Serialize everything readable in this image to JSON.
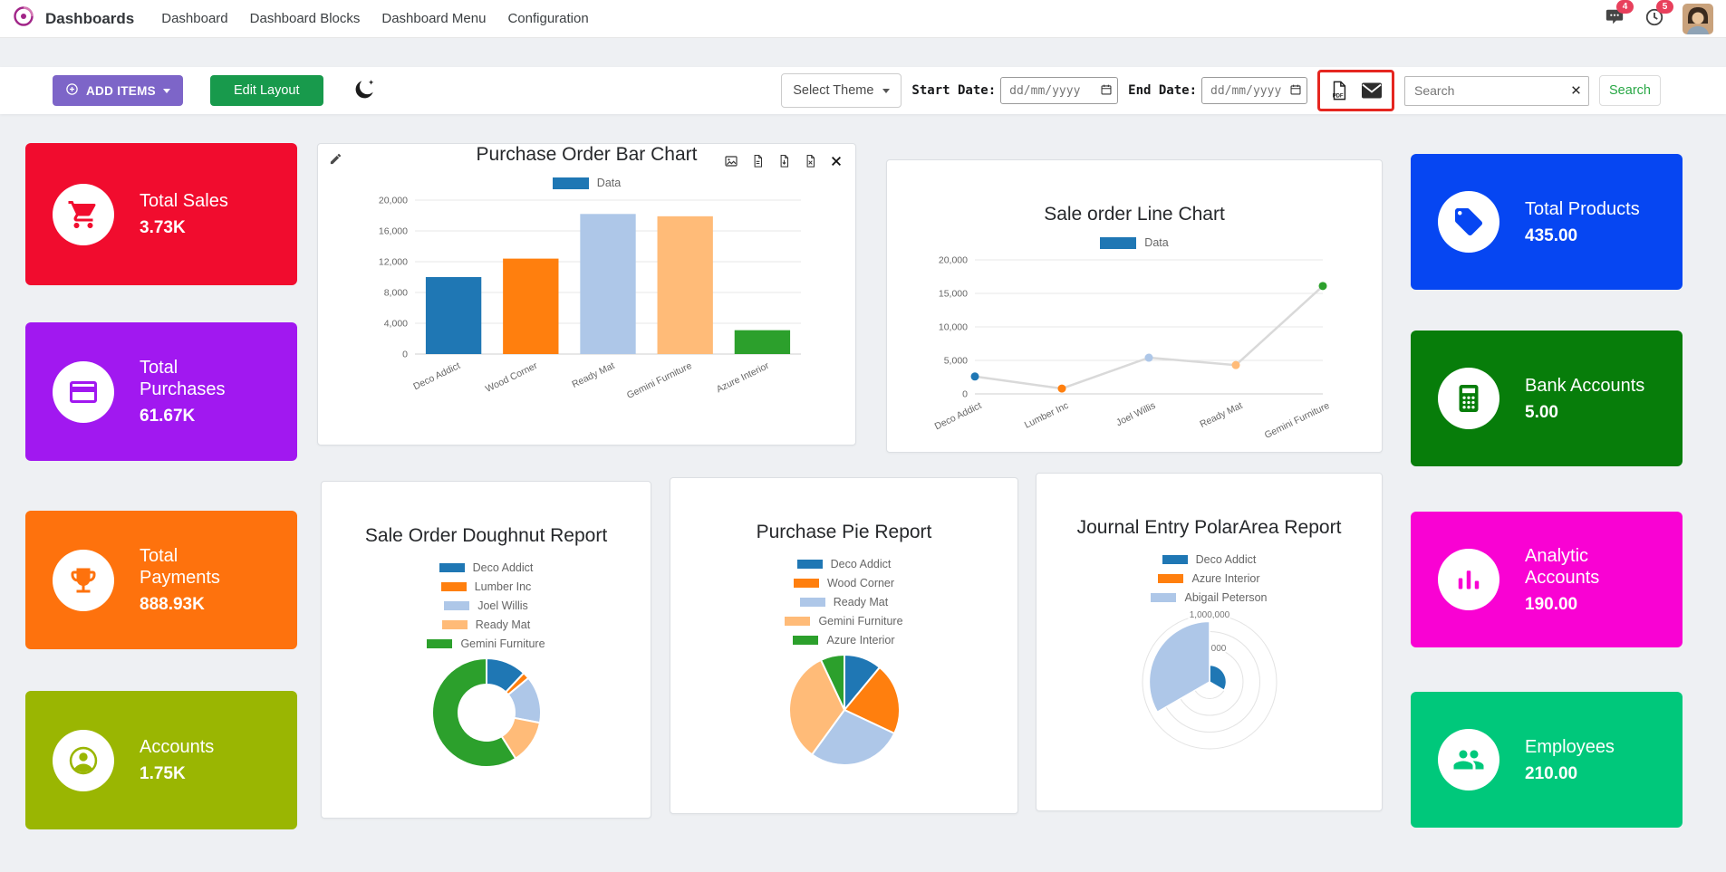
{
  "nav": {
    "app_title": "Dashboards",
    "items": [
      "Dashboard",
      "Dashboard Blocks",
      "Dashboard Menu",
      "Configuration"
    ],
    "messages_badge": "4",
    "activities_badge": "5"
  },
  "toolbar": {
    "add_items_label": "ADD ITEMS",
    "edit_layout_label": "Edit Layout",
    "select_theme_label": "Select Theme",
    "start_date_label": "Start Date:",
    "end_date_label": "End Date:",
    "date_placeholder": "dd/mm/yyyy",
    "pdf_icon_label": "PDF",
    "search_placeholder": "Search",
    "search_button_label": "Search",
    "colors": {
      "add_items": "#7d65c8",
      "edit_layout": "#189a4c",
      "search_text": "#28a745",
      "annotation": "#e52620"
    }
  },
  "kpis": {
    "left": [
      {
        "title": "Total Sales",
        "value": "3.73K",
        "color": "#f10c2e"
      },
      {
        "title": "Total Purchases",
        "value": "61.67K",
        "color": "#a118f0"
      },
      {
        "title": "Total Payments",
        "value": "888.93K",
        "color": "#fe720d"
      },
      {
        "title": "Accounts",
        "value": "1.75K",
        "color": "#9ab602"
      }
    ],
    "right": [
      {
        "title": "Total Products",
        "value": "435.00",
        "color": "#0646f2"
      },
      {
        "title": "Bank Accounts",
        "value": "5.00",
        "color": "#077d0a"
      },
      {
        "title": "Analytic Accounts",
        "value": "190.00",
        "color": "#f902d3"
      },
      {
        "title": "Employees",
        "value": "210.00",
        "color": "#00c87b"
      }
    ]
  },
  "chart_data": [
    {
      "type": "bar",
      "title": "Purchase Order Bar Chart",
      "legend": "Data",
      "legend_color": "#1f77b4",
      "categories": [
        "Deco Addict",
        "Wood Corner",
        "Ready Mat",
        "Gemini Furniture",
        "Azure Interior"
      ],
      "values": [
        10000,
        12400,
        18200,
        17900,
        3100
      ],
      "colors": [
        "#1f77b4",
        "#ff7f0e",
        "#aec7e8",
        "#ffbb78",
        "#2ca02c"
      ],
      "ylim": [
        0,
        20000
      ],
      "yticks": [
        0,
        4000,
        8000,
        12000,
        16000,
        20000
      ]
    },
    {
      "type": "line",
      "title": "Sale order Line Chart",
      "legend": "Data",
      "legend_color": "#1f77b4",
      "categories": [
        "Deco Addict",
        "Lumber Inc",
        "Joel Willis",
        "Ready Mat",
        "Gemini Furniture"
      ],
      "values": [
        2600,
        800,
        5400,
        4300,
        16100
      ],
      "colors": [
        "#1f77b4",
        "#ff7f0e",
        "#aec7e8",
        "#ffbb78",
        "#2ca02c"
      ],
      "line_color": "#d9d9d9",
      "ylim": [
        0,
        20000
      ],
      "yticks": [
        0,
        5000,
        10000,
        15000,
        20000
      ]
    },
    {
      "type": "doughnut",
      "title": "Sale Order Doughnut Report",
      "labels": [
        "Deco Addict",
        "Lumber Inc",
        "Joel Willis",
        "Ready Mat",
        "Gemini Furniture"
      ],
      "values": [
        12,
        2,
        14,
        13,
        59
      ],
      "colors": [
        "#1f77b4",
        "#ff7f0e",
        "#aec7e8",
        "#ffbb78",
        "#2ca02c"
      ]
    },
    {
      "type": "pie",
      "title": "Purchase Pie Report",
      "labels": [
        "Deco Addict",
        "Wood Corner",
        "Ready Mat",
        "Gemini Furniture",
        "Azure Interior"
      ],
      "values": [
        11,
        21,
        28,
        33,
        7
      ],
      "colors": [
        "#1f77b4",
        "#ff7f0e",
        "#aec7e8",
        "#ffbb78",
        "#2ca02c"
      ]
    },
    {
      "type": "polarArea",
      "title": "Journal Entry PolarArea Report",
      "labels": [
        "Deco Addict",
        "Azure Interior",
        "Abigail Peterson"
      ],
      "values": [
        250000,
        0,
        900000
      ],
      "rmax": 1000000,
      "colors": [
        "#1f77b4",
        "#ff7f0e",
        "#aec7e8"
      ],
      "tick_labels": [
        "1,000,000",
        "000"
      ]
    }
  ]
}
